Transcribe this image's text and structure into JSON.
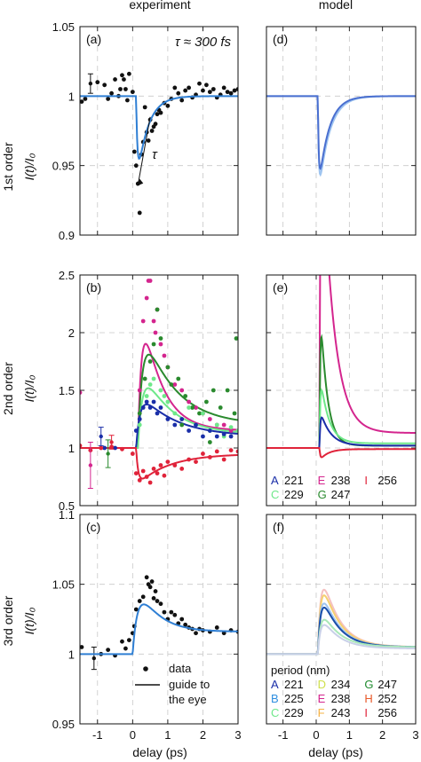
{
  "column_titles": [
    "experiment",
    "model"
  ],
  "row_labels": [
    "1st order",
    "2nd order",
    "3rd order"
  ],
  "ylabel": "I(t)/I₀",
  "xlabel": "delay (ps)",
  "colors": {
    "A": "#1a2ea8",
    "B": "#2f8fe0",
    "C": "#6ee88a",
    "D": "#cfe04a",
    "E": "#d4258e",
    "F": "#f5b040",
    "G": "#1f8a2e",
    "H": "#e85a2a",
    "I": "#e0233a",
    "first_order_fit": "#2f7fd4",
    "model_first": "#4a6fd0",
    "second_blue": "#1a2ea8",
    "second_magenta": "#d4258e",
    "second_green": "#2a8a2e",
    "second_lightgreen": "#6ee88a",
    "second_red": "#e0233a",
    "third_order_fit": "#2f7fd4"
  },
  "chart_data": [
    {
      "panel": "(a)",
      "type": "scatter",
      "column": "experiment",
      "row": "1st order",
      "annotation": "τ ≈ 300 fs",
      "fit_annotation": "τ",
      "xlim": [
        -1.5,
        3
      ],
      "ylim": [
        0.9,
        1.05
      ],
      "xticks": [
        -1,
        0,
        1,
        2,
        3
      ],
      "yticks": [
        0.9,
        0.95,
        1,
        1.05
      ],
      "ytick_labels": [
        "0.9",
        "0.95",
        "1",
        "1.05"
      ],
      "xtick_labels": [],
      "grid": true,
      "series": [
        {
          "kind": "points",
          "color": "#111111",
          "x": [
            -1.0,
            -0.8,
            -0.7,
            -0.6,
            -0.5,
            -0.4,
            -0.35,
            -0.3,
            -0.25,
            -0.2,
            -0.15,
            -0.1,
            0.0,
            0.05,
            0.1,
            0.15,
            0.2,
            0.25,
            0.3,
            0.35,
            0.4,
            0.45,
            0.5,
            0.55,
            0.6,
            0.65,
            0.7,
            0.75,
            0.8,
            0.9,
            1.0,
            1.1,
            1.2,
            1.3,
            1.4,
            1.5,
            1.6,
            1.7,
            1.8,
            1.9,
            2.0,
            2.1,
            2.2,
            2.3,
            2.4,
            2.5,
            2.6,
            2.7,
            2.8,
            2.9,
            3.0,
            -1.35,
            -1.45
          ],
          "y": [
            1.01,
            1.008,
            0.998,
            1.002,
            1.012,
            1.0,
            1.005,
            1.015,
            1.012,
            1.005,
            0.997,
            1.016,
            1.003,
            0.96,
            0.95,
            0.937,
            0.916,
            0.958,
            0.967,
            0.992,
            0.974,
            0.968,
            0.983,
            0.975,
            0.978,
            0.98,
            0.987,
            0.99,
            0.988,
            0.995,
            0.993,
            0.998,
            1.006,
            1.002,
            0.997,
            1.004,
            1.006,
            0.999,
            1.001,
            1.009,
            1.004,
            1.008,
            1.003,
            1.005,
            0.999,
            1.001,
            1.006,
            1.003,
            1.002,
            1.004,
            1.005,
            0.998,
            0.996
          ]
        },
        {
          "kind": "errorbar",
          "color": "#111111",
          "x": [
            -1.2
          ],
          "y": [
            1.009
          ],
          "err": [
            0.007
          ]
        },
        {
          "kind": "fit",
          "color": "#2f7fd4",
          "baseline": 1.0,
          "t0": 0.1,
          "rise": 0.04,
          "amp": -0.068,
          "decay": 0.3
        }
      ]
    },
    {
      "panel": "(d)",
      "type": "line",
      "column": "model",
      "row": "1st order",
      "xlim": [
        -1.5,
        3
      ],
      "ylim": [
        0.9,
        1.05
      ],
      "xticks": [
        -1,
        0,
        1,
        2,
        3
      ],
      "yticks": [
        0.9,
        0.95,
        1,
        1.05
      ],
      "xtick_labels": [],
      "ytick_labels": [],
      "grid": true,
      "series": [
        {
          "kind": "fit",
          "color": "#9ec4f0",
          "baseline": 1.0,
          "t0": 0.05,
          "rise": 0.03,
          "amp": -0.078,
          "decay": 0.32
        },
        {
          "kind": "fit",
          "color": "#4a6fd0",
          "baseline": 1.0,
          "t0": 0.05,
          "rise": 0.03,
          "amp": -0.073,
          "decay": 0.3
        }
      ]
    },
    {
      "panel": "(b)",
      "type": "scatter",
      "column": "experiment",
      "row": "2nd order",
      "xlim": [
        -1.5,
        3
      ],
      "ylim": [
        0.5,
        2.5
      ],
      "xticks": [
        -1,
        0,
        1,
        2,
        3
      ],
      "yticks": [
        0.5,
        1,
        1.5,
        2,
        2.5
      ],
      "ytick_labels": [
        "0.5",
        "1",
        "1.5",
        "2",
        "2.5"
      ],
      "xtick_labels": [],
      "grid": true,
      "series": [
        {
          "kind": "fit",
          "color": "#d4258e",
          "baseline": 1.0,
          "t0": 0.15,
          "rise": 0.12,
          "amp": 1.38,
          "decay": 0.55,
          "offset": 0.15
        },
        {
          "kind": "fit",
          "color": "#2a8a2e",
          "baseline": 1.0,
          "t0": 0.15,
          "rise": 0.14,
          "amp": 1.0,
          "decay": 0.9,
          "offset": 0.2
        },
        {
          "kind": "fit",
          "color": "#6ee88a",
          "baseline": 1.0,
          "t0": 0.15,
          "rise": 0.14,
          "amp": 0.68,
          "decay": 0.8,
          "offset": 0.12
        },
        {
          "kind": "fit",
          "color": "#1a2ea8",
          "baseline": 1.0,
          "t0": 0.1,
          "rise": 0.12,
          "amp": 0.42,
          "decay": 1.0,
          "offset": 0.1
        },
        {
          "kind": "fit",
          "color": "#e0233a",
          "baseline": 1.0,
          "t0": 0.1,
          "rise": 0.06,
          "amp": -0.28,
          "decay": 0.9,
          "offset": -0.05
        },
        {
          "kind": "points",
          "color": "#d4258e",
          "x": [
            0.2,
            0.3,
            0.4,
            0.5,
            0.6,
            0.7,
            0.8,
            0.9,
            1.0,
            1.2,
            1.4,
            1.6,
            1.8,
            2.0,
            2.2,
            2.4,
            2.6,
            2.8,
            0.45,
            0.65,
            -1.5
          ],
          "y": [
            1.5,
            2.1,
            2.3,
            2.45,
            2.1,
            2.2,
            1.9,
            1.8,
            1.7,
            1.55,
            1.5,
            1.4,
            1.35,
            1.3,
            1.25,
            1.2,
            1.2,
            1.15,
            2.45,
            2.0,
            1.48
          ]
        },
        {
          "kind": "points",
          "color": "#2a8a2e",
          "x": [
            0.2,
            0.35,
            0.5,
            0.6,
            0.8,
            1.0,
            1.1,
            1.3,
            1.5,
            1.7,
            1.9,
            2.1,
            2.3,
            2.5,
            2.7,
            2.9,
            2.95,
            0.7,
            1.4,
            2.2
          ],
          "y": [
            1.3,
            1.6,
            1.75,
            1.9,
            1.95,
            1.7,
            1.55,
            1.6,
            1.45,
            1.35,
            1.3,
            1.4,
            1.5,
            1.35,
            1.5,
            1.3,
            1.95,
            2.2,
            1.2,
            1.05
          ]
        },
        {
          "kind": "points",
          "color": "#6ee88a",
          "x": [
            0.2,
            0.4,
            0.5,
            0.6,
            0.8,
            0.9,
            1.0,
            1.2,
            1.4,
            1.6,
            1.8,
            2.0,
            2.2,
            2.4,
            2.6,
            2.8,
            3.0
          ],
          "y": [
            1.2,
            1.45,
            1.55,
            1.6,
            1.5,
            1.45,
            1.4,
            1.3,
            1.25,
            1.35,
            1.2,
            1.3,
            1.15,
            1.2,
            1.1,
            1.18,
            1.15
          ]
        },
        {
          "kind": "points",
          "color": "#1a2ea8",
          "x": [
            0.1,
            0.2,
            0.3,
            0.4,
            0.5,
            0.6,
            0.7,
            0.8,
            1.0,
            1.2,
            1.4,
            1.6,
            1.8,
            2.0,
            2.2,
            2.4,
            2.6,
            2.8,
            -0.5,
            -0.8
          ],
          "y": [
            1.15,
            1.25,
            1.35,
            1.4,
            1.35,
            1.4,
            1.3,
            1.35,
            1.25,
            1.2,
            1.25,
            1.15,
            1.2,
            1.1,
            1.15,
            1.1,
            1.12,
            1.1,
            1.0,
            1.0
          ]
        },
        {
          "kind": "points",
          "color": "#e0233a",
          "x": [
            -1.5,
            -1.2,
            -0.9,
            -0.6,
            -0.3,
            0.0,
            0.1,
            0.2,
            0.3,
            0.4,
            0.5,
            0.6,
            0.7,
            0.8,
            0.9,
            1.0,
            1.2,
            1.4,
            1.6,
            1.8,
            2.0,
            2.2,
            2.4,
            2.6,
            2.8,
            3.0
          ],
          "y": [
            1.02,
            0.98,
            1.0,
            1.01,
            0.99,
            0.95,
            0.78,
            0.72,
            0.8,
            0.75,
            0.7,
            0.82,
            0.78,
            0.85,
            0.76,
            0.88,
            0.85,
            0.82,
            0.9,
            0.88,
            0.95,
            0.92,
            0.97,
            0.9,
            0.98,
            0.97
          ]
        },
        {
          "kind": "errorbar",
          "color": "#1a2ea8",
          "x": [
            -0.9
          ],
          "y": [
            1.1
          ],
          "err": [
            0.08
          ]
        },
        {
          "kind": "errorbar",
          "color": "#d4258e",
          "x": [
            -1.2
          ],
          "y": [
            0.85
          ],
          "err": [
            0.2
          ]
        },
        {
          "kind": "errorbar",
          "color": "#2a8a2e",
          "x": [
            -0.7
          ],
          "y": [
            0.95
          ],
          "err": [
            0.12
          ]
        },
        {
          "kind": "errorbar",
          "color": "#e0233a",
          "x": [
            -0.6
          ],
          "y": [
            1.05
          ],
          "err": [
            0.06
          ]
        }
      ]
    },
    {
      "panel": "(e)",
      "type": "line",
      "column": "model",
      "row": "2nd order",
      "xlim": [
        -1.5,
        3
      ],
      "ylim": [
        0.5,
        2.5
      ],
      "xticks": [
        -1,
        0,
        1,
        2,
        3
      ],
      "yticks": [
        0.5,
        1,
        1.5,
        2,
        2.5
      ],
      "xtick_labels": [],
      "ytick_labels": [],
      "grid": true,
      "series": [
        {
          "kind": "fit",
          "color": "#d4258e",
          "baseline": 1.0,
          "t0": 0.1,
          "rise": 0.025,
          "amp": 3.2,
          "decay": 0.35,
          "offset": 0.13
        },
        {
          "kind": "fit",
          "color": "#2a8a2e",
          "baseline": 1.0,
          "t0": 0.1,
          "rise": 0.025,
          "amp": 1.4,
          "decay": 0.2,
          "offset": 0.02
        },
        {
          "kind": "fit",
          "color": "#6ee88a",
          "baseline": 1.0,
          "t0": 0.1,
          "rise": 0.025,
          "amp": 0.65,
          "decay": 0.25,
          "offset": 0.04
        },
        {
          "kind": "fit",
          "color": "#1a2ea8",
          "baseline": 1.0,
          "t0": 0.1,
          "rise": 0.025,
          "amp": 0.33,
          "decay": 0.3,
          "offset": 0.02
        },
        {
          "kind": "fit",
          "color": "#e0233a",
          "baseline": 1.0,
          "t0": 0.1,
          "rise": 0.025,
          "amp": -0.1,
          "decay": 0.25,
          "offset": -0.01
        }
      ],
      "legend": {
        "placement": "bottom",
        "entries": [
          {
            "letter": "A",
            "value": "221",
            "color": "#1a2ea8"
          },
          {
            "letter": "E",
            "value": "238",
            "color": "#d4258e"
          },
          {
            "letter": "I",
            "value": "256",
            "color": "#e0233a"
          },
          {
            "letter": "C",
            "value": "229",
            "color": "#6ee88a"
          },
          {
            "letter": "G",
            "value": "247",
            "color": "#2a8a2e"
          }
        ]
      }
    },
    {
      "panel": "(c)",
      "type": "scatter",
      "column": "experiment",
      "row": "3rd order",
      "xlim": [
        -1.5,
        3
      ],
      "ylim": [
        0.95,
        1.1
      ],
      "xticks": [
        -1,
        0,
        1,
        2,
        3
      ],
      "yticks": [
        0.95,
        1,
        1.05,
        1.1
      ],
      "ytick_labels": [
        "0.95",
        "1",
        "1.05",
        "1.1"
      ],
      "xtick_labels": [
        "-1",
        "0",
        "1",
        "2",
        "3"
      ],
      "grid": true,
      "series": [
        {
          "kind": "points",
          "color": "#111111",
          "x": [
            -1.45,
            -0.9,
            -0.7,
            -0.5,
            -0.3,
            -0.2,
            -0.1,
            0.0,
            0.05,
            0.1,
            0.2,
            0.3,
            0.4,
            0.45,
            0.5,
            0.55,
            0.6,
            0.65,
            0.7,
            0.8,
            0.9,
            1.0,
            1.1,
            1.2,
            1.3,
            1.4,
            1.5,
            1.6,
            1.7,
            1.8,
            1.9,
            2.0,
            2.2,
            2.4,
            2.6,
            2.8,
            3.0
          ],
          "y": [
            1.005,
            1.0,
            1.003,
            0.999,
            1.009,
            1.004,
            1.01,
            1.015,
            1.02,
            1.032,
            1.038,
            1.041,
            1.055,
            1.05,
            1.048,
            1.052,
            1.04,
            1.045,
            1.038,
            1.036,
            1.03,
            1.025,
            1.03,
            1.028,
            1.022,
            1.025,
            1.021,
            1.019,
            1.018,
            1.015,
            1.018,
            1.017,
            1.016,
            1.019,
            1.015,
            1.017,
            1.016
          ]
        },
        {
          "kind": "errorbar",
          "color": "#111111",
          "x": [
            -1.1
          ],
          "y": [
            0.997
          ],
          "err": [
            0.008
          ]
        },
        {
          "kind": "fit",
          "color": "#2f7fd4",
          "baseline": 1.0,
          "t0": 0.0,
          "rise": 0.18,
          "amp": 0.048,
          "decay": 0.55,
          "offset": 0.016
        }
      ],
      "legend": {
        "placement": "bottom-right",
        "entries": [
          {
            "kind": "marker",
            "label": "data"
          },
          {
            "kind": "line",
            "label": "guide to the eye",
            "lines": [
              "guide to",
              "the eye"
            ]
          }
        ]
      }
    },
    {
      "panel": "(f)",
      "type": "line",
      "column": "model",
      "row": "3rd order",
      "xlim": [
        -1.5,
        3
      ],
      "ylim": [
        0.95,
        1.1
      ],
      "xticks": [
        -1,
        0,
        1,
        2,
        3
      ],
      "yticks": [
        0.95,
        1,
        1.05,
        1.1
      ],
      "xtick_labels": [
        "-1",
        "0",
        "1",
        "2",
        "3"
      ],
      "ytick_labels": [],
      "grid": true,
      "series": [
        {
          "kind": "fit",
          "color": "#f5c0c0",
          "baseline": 1.0,
          "t0": 0.05,
          "rise": 0.1,
          "amp": 0.072,
          "decay": 0.5,
          "offset": 0.005
        },
        {
          "kind": "fit",
          "color": "#f5d070",
          "baseline": 1.0,
          "t0": 0.05,
          "rise": 0.1,
          "amp": 0.065,
          "decay": 0.5,
          "offset": 0.005
        },
        {
          "kind": "fit",
          "color": "#9ec4f0",
          "baseline": 1.0,
          "t0": 0.05,
          "rise": 0.1,
          "amp": 0.055,
          "decay": 0.5,
          "offset": 0.005
        },
        {
          "kind": "fit",
          "color": "#1a4ea8",
          "baseline": 1.0,
          "t0": 0.05,
          "rise": 0.1,
          "amp": 0.05,
          "decay": 0.5,
          "offset": 0.005
        },
        {
          "kind": "fit",
          "color": "#a8e8b8",
          "baseline": 1.0,
          "t0": 0.05,
          "rise": 0.1,
          "amp": 0.035,
          "decay": 0.5,
          "offset": 0.005
        },
        {
          "kind": "fit",
          "color": "#c8d0e8",
          "baseline": 1.0,
          "t0": 0.05,
          "rise": 0.1,
          "amp": 0.03,
          "decay": 0.5,
          "offset": 0.004
        }
      ],
      "legend": {
        "placement": "bottom",
        "title": "period (nm)",
        "entries": [
          {
            "letter": "A",
            "value": "221",
            "color": "#1a2ea8"
          },
          {
            "letter": "D",
            "value": "234",
            "color": "#cfe04a"
          },
          {
            "letter": "G",
            "value": "247",
            "color": "#1f8a2e"
          },
          {
            "letter": "B",
            "value": "225",
            "color": "#2f8fe0"
          },
          {
            "letter": "E",
            "value": "238",
            "color": "#d4258e"
          },
          {
            "letter": "H",
            "value": "252",
            "color": "#e85a2a"
          },
          {
            "letter": "C",
            "value": "229",
            "color": "#6ee88a"
          },
          {
            "letter": "F",
            "value": "243",
            "color": "#f5b040"
          },
          {
            "letter": "I",
            "value": "256",
            "color": "#e0233a"
          }
        ]
      }
    }
  ]
}
